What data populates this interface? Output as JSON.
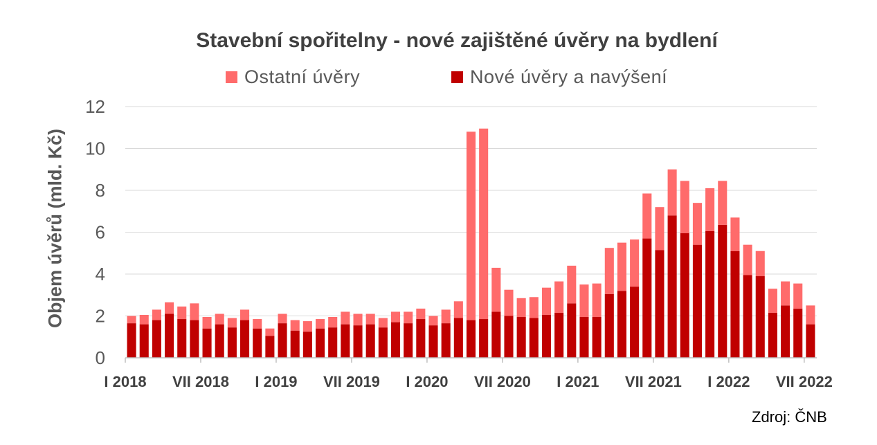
{
  "chart_data": {
    "type": "bar",
    "stacked": true,
    "title": "Stavební spořitelny - nové zajištěné úvěry na bydlení",
    "ylabel": "Objem úvěrů (mld. Kč)",
    "xlabel": "",
    "ylim": [
      0,
      12
    ],
    "yticks": [
      0,
      2,
      4,
      6,
      8,
      10,
      12
    ],
    "grid": true,
    "legend_position": "top",
    "x_tick_labels": [
      {
        "label": "I 2018",
        "index": 0
      },
      {
        "label": "VII 2018",
        "index": 6
      },
      {
        "label": "I 2019",
        "index": 12
      },
      {
        "label": "VII 2019",
        "index": 18
      },
      {
        "label": "I 2020",
        "index": 24
      },
      {
        "label": "VII 2020",
        "index": 30
      },
      {
        "label": "I 2021",
        "index": 36
      },
      {
        "label": "VII 2021",
        "index": 42
      },
      {
        "label": "I 2022",
        "index": 48
      },
      {
        "label": "VII 2022",
        "index": 54
      }
    ],
    "categories": [
      "I 2018",
      "II 2018",
      "III 2018",
      "IV 2018",
      "V 2018",
      "VI 2018",
      "VII 2018",
      "VIII 2018",
      "IX 2018",
      "X 2018",
      "XI 2018",
      "XII 2018",
      "I 2019",
      "II 2019",
      "III 2019",
      "IV 2019",
      "V 2019",
      "VI 2019",
      "VII 2019",
      "VIII 2019",
      "IX 2019",
      "X 2019",
      "XI 2019",
      "XII 2019",
      "I 2020",
      "II 2020",
      "III 2020",
      "IV 2020",
      "V 2020",
      "VI 2020",
      "VII 2020",
      "VIII 2020",
      "IX 2020",
      "X 2020",
      "XI 2020",
      "XII 2020",
      "I 2021",
      "II 2021",
      "III 2021",
      "IV 2021",
      "V 2021",
      "VI 2021",
      "VII 2021",
      "VIII 2021",
      "IX 2021",
      "X 2021",
      "XI 2021",
      "XII 2021",
      "I 2022",
      "II 2022",
      "III 2022",
      "IV 2022",
      "V 2022",
      "VI 2022",
      "VII 2022"
    ],
    "series": [
      {
        "name": "Nové úvěry a navýšení",
        "color": "#c00000",
        "values": [
          1.65,
          1.6,
          1.8,
          2.1,
          1.85,
          1.8,
          1.4,
          1.6,
          1.45,
          1.8,
          1.4,
          1.05,
          1.65,
          1.3,
          1.25,
          1.4,
          1.45,
          1.6,
          1.55,
          1.6,
          1.45,
          1.7,
          1.65,
          1.85,
          1.55,
          1.65,
          1.9,
          1.8,
          1.85,
          2.2,
          2.0,
          1.95,
          1.9,
          2.05,
          2.15,
          2.6,
          1.95,
          1.95,
          3.05,
          3.2,
          3.4,
          5.7,
          5.15,
          6.8,
          5.95,
          5.4,
          6.05,
          6.35,
          5.1,
          3.95,
          3.9,
          2.15,
          2.5,
          2.35,
          1.6
        ]
      },
      {
        "name": "Ostatní úvěry",
        "color": "#ff6b6b",
        "values": [
          0.35,
          0.45,
          0.5,
          0.55,
          0.6,
          0.8,
          0.55,
          0.5,
          0.45,
          0.5,
          0.45,
          0.35,
          0.45,
          0.5,
          0.5,
          0.45,
          0.5,
          0.6,
          0.55,
          0.5,
          0.45,
          0.5,
          0.55,
          0.5,
          0.45,
          0.65,
          0.8,
          9.0,
          9.1,
          2.1,
          1.25,
          0.9,
          1.0,
          1.3,
          1.5,
          1.8,
          1.55,
          1.6,
          2.2,
          2.3,
          2.25,
          2.15,
          2.05,
          2.2,
          2.5,
          2.0,
          2.05,
          2.1,
          1.6,
          1.45,
          1.2,
          1.15,
          1.15,
          1.2,
          0.9
        ]
      }
    ]
  },
  "legend": [
    {
      "label": "Ostatní úvěry",
      "color": "#ff6b6b"
    },
    {
      "label": "Nové úvěry a navýšení",
      "color": "#c00000"
    }
  ],
  "source": "Zdroj: ČNB"
}
